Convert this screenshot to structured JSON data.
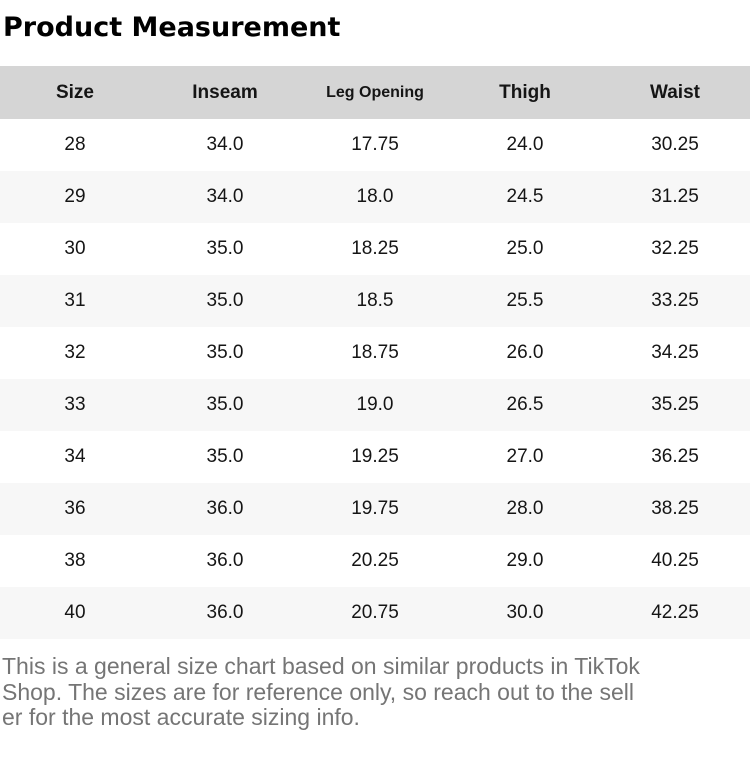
{
  "page": {
    "title": "Product Measurement"
  },
  "colors": {
    "header_bg": "#d5d5d5",
    "row_alt_bg": "#f7f7f7",
    "title_text": "#000000",
    "cell_text": "#151515",
    "disclaimer_text": "#757575"
  },
  "table": {
    "headers": [
      "Size",
      "Inseam",
      "Leg Opening",
      "Thigh",
      "Waist"
    ],
    "rows": [
      [
        "28",
        "34.0",
        "17.75",
        "24.0",
        "30.25"
      ],
      [
        "29",
        "34.0",
        "18.0",
        "24.5",
        "31.25"
      ],
      [
        "30",
        "35.0",
        "18.25",
        "25.0",
        "32.25"
      ],
      [
        "31",
        "35.0",
        "18.5",
        "25.5",
        "33.25"
      ],
      [
        "32",
        "35.0",
        "18.75",
        "26.0",
        "34.25"
      ],
      [
        "33",
        "35.0",
        "19.0",
        "26.5",
        "35.25"
      ],
      [
        "34",
        "35.0",
        "19.25",
        "27.0",
        "36.25"
      ],
      [
        "36",
        "36.0",
        "19.75",
        "28.0",
        "38.25"
      ],
      [
        "38",
        "36.0",
        "20.25",
        "29.0",
        "40.25"
      ],
      [
        "40",
        "36.0",
        "20.75",
        "30.0",
        "42.25"
      ]
    ]
  },
  "disclaimer": {
    "text": "This is a general size chart based on similar products in TikTok Shop. The sizes are for reference only, so reach out to the seller for the most accurate sizing info.",
    "lines": [
      "This is a general size chart based on similar products in TikTok",
      "Shop. The sizes are for reference only, so reach out to the sell",
      "er for the most accurate sizing info."
    ]
  }
}
